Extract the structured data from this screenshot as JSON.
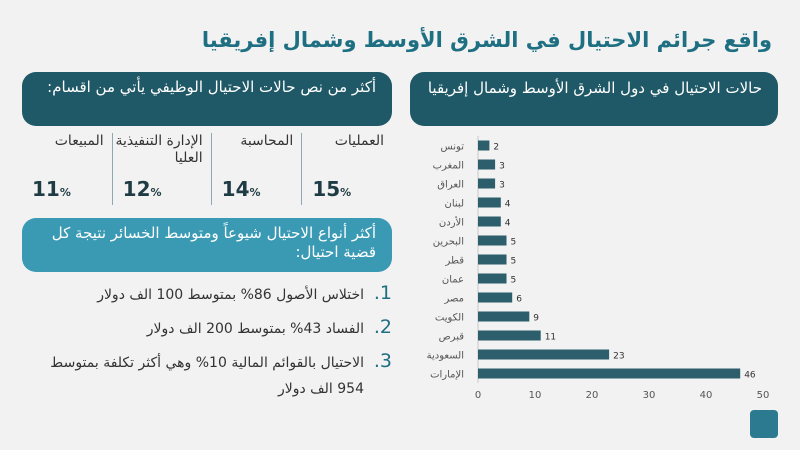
{
  "title": "واقع جرائم الاحتيال في الشرق الأوسط وشمال إفريقيا",
  "chart_panel": {
    "heading": "حالات الاحتيال في دول الشرق الأوسط وشمال إفريقيا"
  },
  "departments": {
    "heading": "أكثر من نص حالات الاحتيال الوظيفي يأتي من اقسام:",
    "items": [
      {
        "label": "العمليات",
        "value": "15",
        "unit": "%"
      },
      {
        "label": "المحاسبة",
        "value": "14",
        "unit": "%"
      },
      {
        "label": "الإدارة التنفيذية العليا",
        "value": "12",
        "unit": "%"
      },
      {
        "label": "المبيعات",
        "value": "11",
        "unit": "%"
      }
    ]
  },
  "fraud_types": {
    "heading": "أكثر أنواع الاحتيال شيوعاً ومتوسط الخسائر نتيجة كل قضية احتيال:",
    "items": [
      {
        "num": "1.",
        "text": "اختلاس الأصول 86% بمتوسط 100 الف دولار"
      },
      {
        "num": "2.",
        "text": "الفساد 43% بمتوسط 200 الف دولار"
      },
      {
        "num": "3.",
        "text": "الاحتيال بالقوائم المالية 10% وهي أكثر تكلفة بمتوسط 954 الف دولار"
      }
    ]
  },
  "chart_data": {
    "type": "bar",
    "orientation": "horizontal",
    "categories": [
      "تونس",
      "المغرب",
      "العراق",
      "لبنان",
      "الأردن",
      "البحرين",
      "قطر",
      "عمان",
      "مصر",
      "الكويت",
      "قبرص",
      "السعودية",
      "الإمارات"
    ],
    "values": [
      2,
      3,
      3,
      4,
      4,
      5,
      5,
      5,
      6,
      9,
      11,
      23,
      46
    ],
    "xlim": [
      0,
      50
    ],
    "xticks": [
      "0",
      "10",
      "20",
      "30",
      "40",
      "50"
    ],
    "bar_color": "#2c5e6c",
    "gridlines": false
  }
}
